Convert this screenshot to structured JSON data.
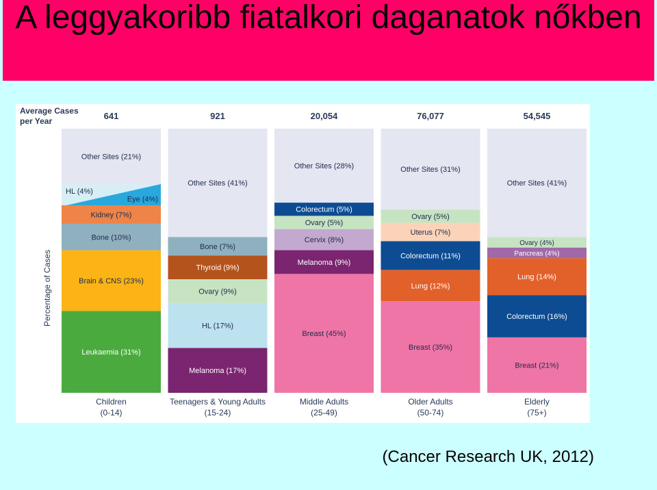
{
  "title": "A leggyakoribb fiatalkori daganatok nőkben",
  "source": "(Cancer Research UK, 2012)",
  "colors": {
    "title_bar": "#ff0066",
    "background": "#ccffff"
  },
  "chart_data": {
    "type": "stacked-bar",
    "ylabel": "Percentage of Cases",
    "cases_header": "Average Cases per Year",
    "groups": [
      {
        "label": "Children",
        "sublabel": "(0-14)",
        "cases": "641",
        "segments": [
          {
            "label": "Leukaemia (31%)",
            "value": 31,
            "color": "#4aaa3e"
          },
          {
            "label": "Brain & CNS (23%)",
            "value": 23,
            "color": "#fbb315"
          },
          {
            "label": "Bone (10%)",
            "value": 10,
            "color": "#8fb1bf"
          },
          {
            "label": "Kidney (7%)",
            "value": 7,
            "color": "#ee8448"
          },
          {
            "label": "HL (4%) / Eye (4%)",
            "value": 8,
            "color": "#d6eef4",
            "split": [
              "HL (4%)",
              "Eye (4%)"
            ],
            "split_color": "#29a8dd"
          },
          {
            "label": "Other Sites (21%)",
            "value": 21,
            "color": "#e4e6f2"
          }
        ]
      },
      {
        "label": "Teenagers & Young Adults",
        "sublabel": "(15-24)",
        "cases": "921",
        "segments": [
          {
            "label": "Melanoma (17%)",
            "value": 17,
            "color": "#7b2470"
          },
          {
            "label": "HL (17%)",
            "value": 17,
            "color": "#bde2ef"
          },
          {
            "label": "Ovary (9%)",
            "value": 9,
            "color": "#c6e3c2"
          },
          {
            "label": "Thyroid (9%)",
            "value": 9,
            "color": "#b5531d"
          },
          {
            "label": "Bone (7%)",
            "value": 7,
            "color": "#8fb1bf"
          },
          {
            "label": "Other Sites (41%)",
            "value": 41,
            "color": "#e4e6f2"
          }
        ]
      },
      {
        "label": "Middle Adults",
        "sublabel": "(25-49)",
        "cases": "20,054",
        "segments": [
          {
            "label": "Breast (45%)",
            "value": 45,
            "color": "#f075a7"
          },
          {
            "label": "Melanoma (9%)",
            "value": 9,
            "color": "#7b2470"
          },
          {
            "label": "Cervix (8%)",
            "value": 8,
            "color": "#c3a8d0"
          },
          {
            "label": "Ovary (5%)",
            "value": 5,
            "color": "#c6e3c2"
          },
          {
            "label": "Colorectum (5%)",
            "value": 5,
            "color": "#0d4c93"
          },
          {
            "label": "Other Sites (28%)",
            "value": 28,
            "color": "#e4e6f2"
          }
        ]
      },
      {
        "label": "Older Adults",
        "sublabel": "(50-74)",
        "cases": "76,077",
        "segments": [
          {
            "label": "Breast (35%)",
            "value": 35,
            "color": "#f075a7"
          },
          {
            "label": "Lung (12%)",
            "value": 12,
            "color": "#e2602a"
          },
          {
            "label": "Colorectum (11%)",
            "value": 11,
            "color": "#0d4c93"
          },
          {
            "label": "Uterus (7%)",
            "value": 7,
            "color": "#fbd3b8"
          },
          {
            "label": "Ovary (5%)",
            "value": 5,
            "color": "#c6e3c2"
          },
          {
            "label": "Other Sites (31%)",
            "value": 31,
            "color": "#e4e6f2"
          }
        ]
      },
      {
        "label": "Elderly",
        "sublabel": "(75+)",
        "cases": "54,545",
        "segments": [
          {
            "label": "Breast (21%)",
            "value": 21,
            "color": "#f075a7"
          },
          {
            "label": "Colorectum (16%)",
            "value": 16,
            "color": "#0d4c93"
          },
          {
            "label": "Lung (14%)",
            "value": 14,
            "color": "#e2602a"
          },
          {
            "label": "Pancreas (4%)",
            "value": 4,
            "color": "#a06aa8"
          },
          {
            "label": "Ovary (4%)",
            "value": 4,
            "color": "#c6e3c2"
          },
          {
            "label": "Other Sites (41%)",
            "value": 41,
            "color": "#e4e6f2"
          }
        ]
      }
    ]
  }
}
